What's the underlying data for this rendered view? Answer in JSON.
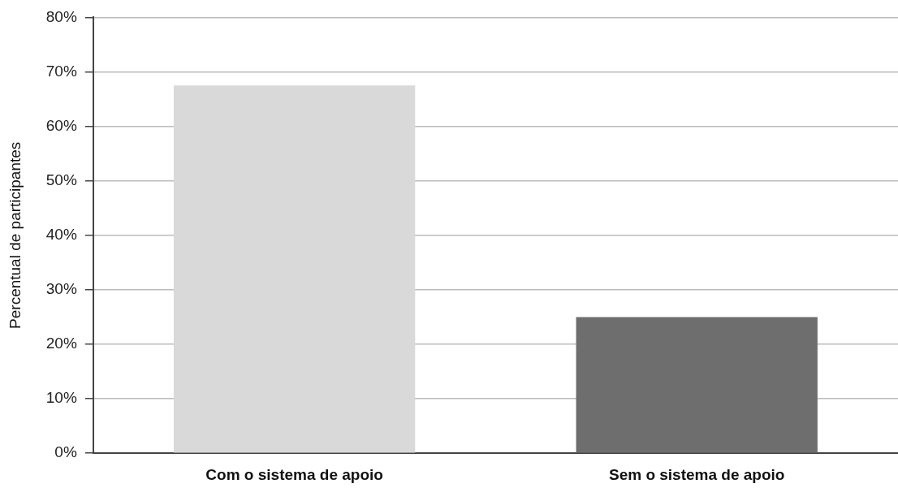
{
  "chart_data": {
    "type": "bar",
    "ylabel": "Percentual de participantes",
    "categories": [
      "Com o sistema de apoio",
      "Sem o sistema de apoio"
    ],
    "values": [
      67.5,
      25
    ],
    "colors": [
      "#d9d9d9",
      "#6e6e6e"
    ],
    "ylim": [
      0,
      80
    ],
    "yticks": [
      {
        "value": 0,
        "label": "0%"
      },
      {
        "value": 10,
        "label": "10%"
      },
      {
        "value": 20,
        "label": "20%"
      },
      {
        "value": 30,
        "label": "30%"
      },
      {
        "value": 40,
        "label": "40%"
      },
      {
        "value": 50,
        "label": "50%"
      },
      {
        "value": 60,
        "label": "60%"
      },
      {
        "value": 70,
        "label": "70%"
      },
      {
        "value": 80,
        "label": "80%"
      }
    ],
    "grid": "y",
    "legend": false
  }
}
